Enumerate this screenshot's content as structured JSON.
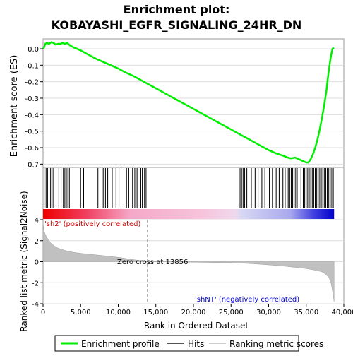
{
  "chart_data": {
    "type": "line",
    "title_line1": "Enrichment plot:",
    "title_line2": "KOBAYASHI_EGFR_SIGNALING_24HR_DN",
    "top_panel": {
      "ylabel": "Enrichment score (ES)",
      "ylim": [
        -0.72,
        0.06
      ],
      "yticks": [
        "0.0",
        "-0.1",
        "-0.2",
        "-0.3",
        "-0.4",
        "-0.5",
        "-0.6",
        "-0.7"
      ],
      "ytick_values": [
        0.0,
        -0.1,
        -0.2,
        -0.3,
        -0.4,
        -0.5,
        -0.6,
        -0.7
      ],
      "series": [
        {
          "name": "Enrichment profile",
          "color": "#00ee00",
          "x": [
            0,
            150,
            300,
            500,
            800,
            1100,
            1400,
            1700,
            2000,
            2300,
            2600,
            2900,
            3200,
            3600,
            4000,
            5000,
            6000,
            7000,
            8000,
            9000,
            10000,
            11000,
            12000,
            13000,
            14000,
            15000,
            16000,
            17000,
            18000,
            19000,
            20000,
            21000,
            22000,
            23000,
            24000,
            25000,
            26000,
            27000,
            28000,
            29000,
            30000,
            31000,
            32000,
            32500,
            33000,
            33500,
            34000,
            34500,
            35000,
            35300,
            35600,
            35900,
            36200,
            36500,
            36800,
            37100,
            37400,
            37700,
            37900,
            38100,
            38300,
            38500,
            38700
          ],
          "y": [
            0.0,
            0.01,
            0.03,
            0.035,
            0.03,
            0.04,
            0.035,
            0.025,
            0.03,
            0.03,
            0.035,
            0.03,
            0.035,
            0.02,
            0.01,
            -0.01,
            -0.035,
            -0.06,
            -0.08,
            -0.1,
            -0.12,
            -0.145,
            -0.165,
            -0.19,
            -0.215,
            -0.24,
            -0.265,
            -0.29,
            -0.315,
            -0.34,
            -0.365,
            -0.39,
            -0.415,
            -0.44,
            -0.465,
            -0.49,
            -0.515,
            -0.54,
            -0.565,
            -0.59,
            -0.615,
            -0.635,
            -0.65,
            -0.66,
            -0.665,
            -0.66,
            -0.67,
            -0.68,
            -0.69,
            -0.69,
            -0.67,
            -0.64,
            -0.6,
            -0.55,
            -0.49,
            -0.42,
            -0.34,
            -0.25,
            -0.17,
            -0.1,
            -0.04,
            0.0,
            0.005
          ]
        }
      ]
    },
    "hits_panel": {
      "hit_positions": [
        150,
        400,
        600,
        800,
        1000,
        1200,
        1400,
        2100,
        2400,
        2700,
        2900,
        3100,
        3300,
        3500,
        5000,
        5400,
        7300,
        8000,
        8300,
        8600,
        9200,
        9700,
        10100,
        11100,
        11400,
        11900,
        12200,
        12500,
        13000,
        13200,
        13500,
        13700,
        26200,
        26400,
        26600,
        26800,
        27100,
        27700,
        28200,
        28600,
        29100,
        29500,
        30100,
        30500,
        31000,
        31400,
        31900,
        32200,
        32600,
        32800,
        33000,
        33200,
        33400,
        33600,
        33800,
        34300,
        34600,
        34800,
        35000,
        35200,
        35400,
        35600,
        35800,
        36000,
        36200,
        36400,
        36600,
        36800,
        37000,
        37200,
        37400,
        37600,
        37800,
        38000,
        38200,
        38400,
        38600
      ]
    },
    "bottom_panel": {
      "ylabel": "Ranked list metric (Signal2Noise)",
      "xlabel": "Rank in Ordered Dataset",
      "ylim": [
        -4,
        4
      ],
      "yticks": [
        "4",
        "2",
        "0",
        "-2",
        "-4"
      ],
      "ytick_values": [
        4,
        2,
        0,
        -2,
        -4
      ],
      "xlim": [
        0,
        40000
      ],
      "xticks": [
        "0",
        "5,000",
        "10,000",
        "15,000",
        "20,000",
        "25,000",
        "30,000",
        "35,000",
        "40,000"
      ],
      "xtick_values": [
        0,
        5000,
        10000,
        15000,
        20000,
        25000,
        30000,
        35000,
        40000
      ],
      "metric_x": [
        0,
        100,
        300,
        600,
        1000,
        1500,
        2000,
        3000,
        4000,
        5000,
        6000,
        7000,
        8000,
        9000,
        10000,
        12000,
        13856,
        16000,
        20000,
        25000,
        26000,
        28000,
        30000,
        32000,
        34000,
        35000,
        36000,
        37000,
        37500,
        38000,
        38300,
        38500,
        38700
      ],
      "metric_y": [
        3.8,
        3.0,
        2.6,
        2.2,
        1.8,
        1.5,
        1.3,
        1.05,
        0.9,
        0.8,
        0.72,
        0.65,
        0.58,
        0.5,
        0.42,
        0.2,
        0.0,
        -0.02,
        -0.05,
        -0.1,
        -0.12,
        -0.2,
        -0.3,
        -0.42,
        -0.58,
        -0.66,
        -0.78,
        -0.95,
        -1.15,
        -1.5,
        -2.0,
        -2.8,
        -3.8
      ],
      "zero_cross_label": "Zero cross at 13856",
      "zero_cross_x": 13856,
      "positive_label": "'sh2' (positively correlated)",
      "negative_label": "'shNT' (negatively correlated)"
    },
    "legend": [
      {
        "label": "Enrichment profile",
        "color": "#00ee00"
      },
      {
        "label": "Hits",
        "color": "#555555"
      },
      {
        "label": "Ranking metric scores",
        "color": "#cccccc"
      }
    ]
  }
}
